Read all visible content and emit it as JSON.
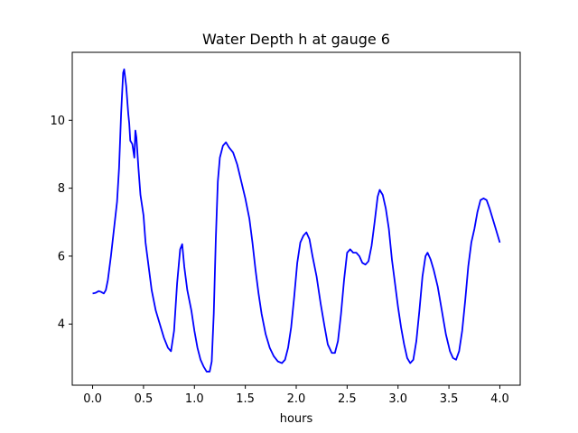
{
  "chart_data": {
    "type": "line",
    "title": "Water Depth h at gauge 6",
    "xlabel": "hours",
    "ylabel": "",
    "xlim": [
      -0.2,
      4.2
    ],
    "ylim": [
      2.2,
      12.0
    ],
    "xticks": [
      0.0,
      0.5,
      1.0,
      1.5,
      2.0,
      2.5,
      3.0,
      3.5,
      4.0
    ],
    "xtick_labels": [
      "0.0",
      "0.5",
      "1.0",
      "1.5",
      "2.0",
      "2.5",
      "3.0",
      "3.5",
      "4.0"
    ],
    "yticks": [
      4,
      6,
      8,
      10
    ],
    "ytick_labels": [
      "4",
      "6",
      "8",
      "10"
    ],
    "grid": false,
    "series": [
      {
        "color": "#0000ff",
        "points": [
          [
            0.0,
            4.9
          ],
          [
            0.03,
            4.92
          ],
          [
            0.06,
            4.97
          ],
          [
            0.08,
            4.95
          ],
          [
            0.11,
            4.9
          ],
          [
            0.13,
            5.0
          ],
          [
            0.15,
            5.3
          ],
          [
            0.18,
            6.0
          ],
          [
            0.21,
            6.8
          ],
          [
            0.24,
            7.6
          ],
          [
            0.26,
            8.6
          ],
          [
            0.28,
            10.2
          ],
          [
            0.3,
            11.4
          ],
          [
            0.31,
            11.5
          ],
          [
            0.33,
            11.0
          ],
          [
            0.35,
            10.2
          ],
          [
            0.36,
            9.9
          ],
          [
            0.37,
            9.4
          ],
          [
            0.39,
            9.3
          ],
          [
            0.4,
            9.1
          ],
          [
            0.41,
            8.9
          ],
          [
            0.42,
            9.7
          ],
          [
            0.43,
            9.5
          ],
          [
            0.45,
            8.6
          ],
          [
            0.47,
            7.8
          ],
          [
            0.5,
            7.2
          ],
          [
            0.52,
            6.4
          ],
          [
            0.55,
            5.7
          ],
          [
            0.58,
            5.0
          ],
          [
            0.62,
            4.4
          ],
          [
            0.66,
            4.0
          ],
          [
            0.7,
            3.6
          ],
          [
            0.74,
            3.3
          ],
          [
            0.77,
            3.2
          ],
          [
            0.8,
            3.8
          ],
          [
            0.83,
            5.2
          ],
          [
            0.86,
            6.2
          ],
          [
            0.88,
            6.35
          ],
          [
            0.9,
            5.7
          ],
          [
            0.93,
            5.0
          ],
          [
            0.97,
            4.4
          ],
          [
            1.0,
            3.8
          ],
          [
            1.03,
            3.3
          ],
          [
            1.06,
            2.95
          ],
          [
            1.09,
            2.75
          ],
          [
            1.12,
            2.6
          ],
          [
            1.15,
            2.6
          ],
          [
            1.17,
            2.9
          ],
          [
            1.19,
            4.3
          ],
          [
            1.21,
            6.5
          ],
          [
            1.23,
            8.2
          ],
          [
            1.25,
            8.9
          ],
          [
            1.28,
            9.25
          ],
          [
            1.31,
            9.35
          ],
          [
            1.34,
            9.2
          ],
          [
            1.38,
            9.05
          ],
          [
            1.42,
            8.7
          ],
          [
            1.46,
            8.2
          ],
          [
            1.5,
            7.7
          ],
          [
            1.54,
            7.1
          ],
          [
            1.57,
            6.4
          ],
          [
            1.6,
            5.6
          ],
          [
            1.63,
            4.9
          ],
          [
            1.66,
            4.3
          ],
          [
            1.7,
            3.7
          ],
          [
            1.74,
            3.3
          ],
          [
            1.78,
            3.05
          ],
          [
            1.82,
            2.9
          ],
          [
            1.86,
            2.85
          ],
          [
            1.89,
            2.95
          ],
          [
            1.92,
            3.3
          ],
          [
            1.95,
            3.9
          ],
          [
            1.98,
            4.8
          ],
          [
            2.01,
            5.8
          ],
          [
            2.04,
            6.4
          ],
          [
            2.07,
            6.6
          ],
          [
            2.1,
            6.7
          ],
          [
            2.13,
            6.5
          ],
          [
            2.16,
            6.0
          ],
          [
            2.2,
            5.4
          ],
          [
            2.24,
            4.6
          ],
          [
            2.28,
            3.9
          ],
          [
            2.31,
            3.4
          ],
          [
            2.35,
            3.15
          ],
          [
            2.38,
            3.15
          ],
          [
            2.41,
            3.5
          ],
          [
            2.44,
            4.3
          ],
          [
            2.47,
            5.3
          ],
          [
            2.5,
            6.1
          ],
          [
            2.53,
            6.2
          ],
          [
            2.56,
            6.1
          ],
          [
            2.59,
            6.1
          ],
          [
            2.62,
            6.0
          ],
          [
            2.65,
            5.8
          ],
          [
            2.68,
            5.75
          ],
          [
            2.71,
            5.85
          ],
          [
            2.74,
            6.3
          ],
          [
            2.77,
            7.0
          ],
          [
            2.8,
            7.75
          ],
          [
            2.82,
            7.95
          ],
          [
            2.85,
            7.8
          ],
          [
            2.88,
            7.4
          ],
          [
            2.91,
            6.8
          ],
          [
            2.94,
            5.9
          ],
          [
            2.97,
            5.2
          ],
          [
            3.0,
            4.5
          ],
          [
            3.03,
            3.9
          ],
          [
            3.06,
            3.4
          ],
          [
            3.09,
            3.0
          ],
          [
            3.12,
            2.85
          ],
          [
            3.15,
            2.95
          ],
          [
            3.18,
            3.5
          ],
          [
            3.21,
            4.4
          ],
          [
            3.24,
            5.4
          ],
          [
            3.27,
            6.0
          ],
          [
            3.29,
            6.1
          ],
          [
            3.32,
            5.9
          ],
          [
            3.35,
            5.6
          ],
          [
            3.39,
            5.1
          ],
          [
            3.43,
            4.4
          ],
          [
            3.47,
            3.7
          ],
          [
            3.51,
            3.2
          ],
          [
            3.54,
            3.0
          ],
          [
            3.57,
            2.95
          ],
          [
            3.6,
            3.2
          ],
          [
            3.63,
            3.8
          ],
          [
            3.66,
            4.7
          ],
          [
            3.69,
            5.7
          ],
          [
            3.72,
            6.4
          ],
          [
            3.75,
            6.8
          ],
          [
            3.78,
            7.3
          ],
          [
            3.81,
            7.65
          ],
          [
            3.84,
            7.7
          ],
          [
            3.87,
            7.65
          ],
          [
            3.9,
            7.4
          ],
          [
            3.93,
            7.1
          ],
          [
            3.96,
            6.8
          ],
          [
            4.0,
            6.4
          ]
        ]
      }
    ]
  }
}
